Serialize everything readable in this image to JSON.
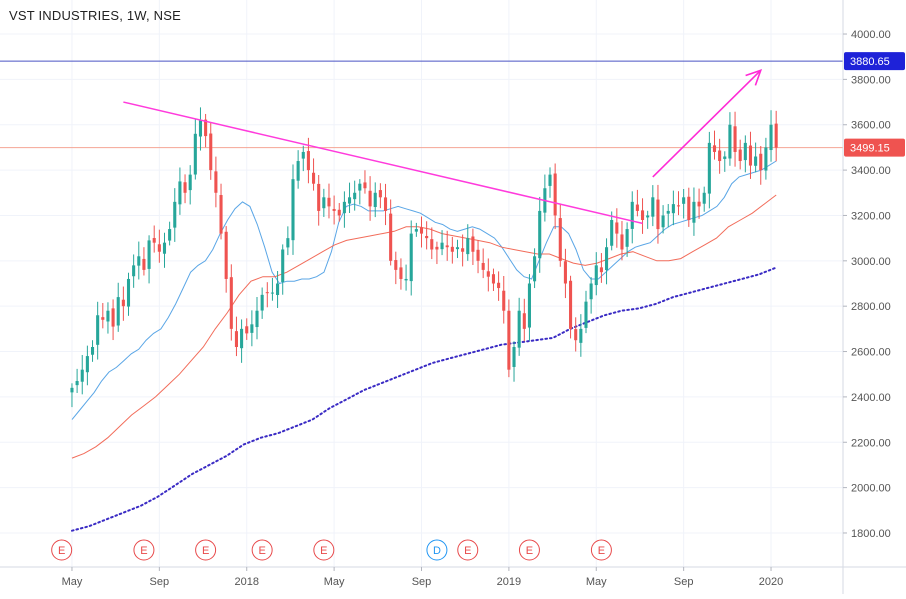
{
  "header": {
    "title": "VST INDUSTRIES, 1W, NSE"
  },
  "colors": {
    "up": "#26a69a",
    "down": "#ef5350",
    "trendline": "#ff3bdc",
    "arrow": "#ff2ad6",
    "ema_fast": "#5aa6e6",
    "ema_slow": "#f26c5a",
    "ma_long": "#3a2bc4",
    "hline_high": "#4a55c4",
    "hline_last": "#f5a594",
    "badge_high": "#1e22d8",
    "badge_last": "#ef5350",
    "event_marker": "#e8494a",
    "dividend_marker": "#2196f3",
    "axis_text": "#555555",
    "grid": "#f0f3fa"
  },
  "chart_data": {
    "type": "candlestick",
    "title": "VST INDUSTRIES, 1W, NSE",
    "xlabel": "",
    "ylabel": "",
    "ylim": [
      1650,
      4150
    ],
    "y_ticks": [
      "4000.00",
      "3800.00",
      "3600.00",
      "3400.00",
      "3200.00",
      "3000.00",
      "2800.00",
      "2600.00",
      "2400.00",
      "2200.00",
      "2000.00",
      "1800.00"
    ],
    "x_ticks": [
      {
        "label": "May",
        "week": 0
      },
      {
        "label": "Sep",
        "week": 17
      },
      {
        "label": "2018",
        "week": 34
      },
      {
        "label": "May",
        "week": 51
      },
      {
        "label": "Sep",
        "week": 68
      },
      {
        "label": "2019",
        "week": 85
      },
      {
        "label": "May",
        "week": 102
      },
      {
        "label": "Sep",
        "week": 119
      },
      {
        "label": "2020",
        "week": 136
      }
    ],
    "x_range": [
      -14,
      150
    ],
    "price_levels": [
      {
        "label": "3880.65",
        "value": 3880.65,
        "kind": "high"
      },
      {
        "label": "3499.15",
        "value": 3499.15,
        "kind": "last"
      }
    ],
    "trendline": {
      "from": {
        "week": 10,
        "price": 3700
      },
      "to": {
        "week": 111,
        "price": 3165
      }
    },
    "arrow": {
      "from": {
        "week": 113,
        "price": 3370
      },
      "to": {
        "week": 134,
        "price": 3840
      }
    },
    "events": [
      {
        "label": "E",
        "week": -2,
        "kind": "earnings"
      },
      {
        "label": "E",
        "week": 14,
        "kind": "earnings"
      },
      {
        "label": "E",
        "week": 26,
        "kind": "earnings"
      },
      {
        "label": "E",
        "week": 37,
        "kind": "earnings"
      },
      {
        "label": "E",
        "week": 49,
        "kind": "earnings"
      },
      {
        "label": "D",
        "week": 71,
        "kind": "dividend"
      },
      {
        "label": "E",
        "week": 77,
        "kind": "earnings"
      },
      {
        "label": "E",
        "week": 89,
        "kind": "earnings"
      },
      {
        "label": "E",
        "week": 103,
        "kind": "earnings"
      }
    ],
    "closes": [
      2440,
      2470,
      2520,
      2580,
      2620,
      2760,
      2740,
      2780,
      2710,
      2840,
      2800,
      2920,
      2980,
      3020,
      2960,
      3090,
      3080,
      3040,
      3080,
      3140,
      3260,
      3350,
      3300,
      3380,
      3560,
      3620,
      3550,
      3400,
      3300,
      3120,
      2920,
      2700,
      2620,
      2700,
      2680,
      2720,
      2780,
      2850,
      2860,
      2860,
      2900,
      3050,
      3100,
      3360,
      3440,
      3480,
      3400,
      3340,
      3220,
      3280,
      3240,
      3220,
      3200,
      3260,
      3280,
      3300,
      3340,
      3320,
      3240,
      3300,
      3280,
      3220,
      3000,
      2960,
      2920,
      2920,
      3120,
      3140,
      3120,
      3100,
      3050,
      3050,
      3080,
      3060,
      3040,
      3060,
      3040,
      3100,
      3040,
      3000,
      2960,
      2930,
      2900,
      2880,
      2780,
      2520,
      2620,
      2780,
      2700,
      2900,
      3020,
      3220,
      3320,
      3380,
      3200,
      3000,
      2900,
      2700,
      2650,
      2700,
      2820,
      2900,
      2980,
      2950,
      3060,
      3180,
      3120,
      3050,
      3140,
      3260,
      3220,
      3180,
      3200,
      3280,
      3140,
      3200,
      3220,
      3250,
      3240,
      3280,
      3180,
      3260,
      3240,
      3300,
      3520,
      3480,
      3440,
      3460,
      3600,
      3480,
      3440,
      3520,
      3420,
      3460,
      3400,
      3500,
      3600,
      3499.15
    ],
    "moving_averages": [
      {
        "kind": "ema_fast",
        "style": "solid",
        "values": [
          2300,
          2340,
          2380,
          2420,
          2470,
          2510,
          2530,
          2560,
          2590,
          2610,
          2650,
          2680,
          2700,
          2750,
          2810,
          2880,
          2950,
          2980,
          3000,
          3050,
          3120,
          3180,
          3230,
          3260,
          3240,
          3160,
          3060,
          2950,
          2900,
          2910,
          2910,
          2920,
          2920,
          2930,
          2950,
          3040,
          3170,
          3240,
          3250,
          3240,
          3220,
          3220,
          3220,
          3230,
          3240,
          3230,
          3220,
          3210,
          3190,
          3170,
          3160,
          3140,
          3130,
          3140,
          3150,
          3140,
          3120,
          3100,
          3060,
          3010,
          2960,
          2930,
          2920,
          3000,
          3080,
          3150,
          3150,
          3120,
          3050,
          2960,
          2920,
          2920,
          2950,
          2980,
          3010,
          3040,
          3060,
          3070,
          3080,
          3110,
          3140,
          3160,
          3170,
          3180,
          3190,
          3200,
          3220,
          3240,
          3280,
          3340,
          3370,
          3380,
          3390,
          3400,
          3420,
          3440
        ]
      },
      {
        "kind": "ema_slow",
        "style": "solid",
        "values": [
          2130,
          2150,
          2180,
          2220,
          2270,
          2320,
          2360,
          2400,
          2450,
          2500,
          2560,
          2620,
          2700,
          2770,
          2850,
          2910,
          2930,
          2930,
          2950,
          2980,
          3010,
          3040,
          3070,
          3090,
          3100,
          3110,
          3120,
          3130,
          3150,
          3150,
          3140,
          3120,
          3110,
          3100,
          3090,
          3080,
          3060,
          3050,
          3040,
          3030,
          3030,
          3010,
          2990,
          2980,
          2990,
          3010,
          3030,
          3040,
          3020,
          3000,
          3000,
          3010,
          3040,
          3070,
          3100,
          3150,
          3180,
          3210,
          3250,
          3290
        ]
      },
      {
        "kind": "ma_long",
        "style": "dotted",
        "values": [
          1810,
          1830,
          1860,
          1890,
          1920,
          1960,
          2010,
          2060,
          2100,
          2140,
          2190,
          2220,
          2240,
          2270,
          2300,
          2350,
          2390,
          2430,
          2460,
          2490,
          2520,
          2550,
          2570,
          2590,
          2610,
          2630,
          2640,
          2650,
          2660,
          2700,
          2730,
          2760,
          2780,
          2790,
          2810,
          2840,
          2860,
          2880,
          2900,
          2920,
          2940,
          2970
        ]
      }
    ]
  }
}
